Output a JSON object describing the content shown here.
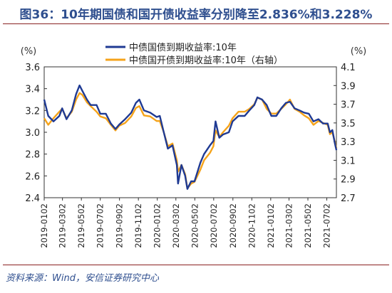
{
  "title": "图36：10年期国债和国开债收益率分别降至2.836%和3.228%",
  "source": "资料来源：Wind，安信证券研究中心",
  "colors": {
    "series1": "#1f3a93",
    "series2": "#f5a31a",
    "axis": "#333333"
  },
  "chart_data": {
    "type": "line",
    "title": "图36：10年期国债和国开债收益率分别降至2.836%和3.228%",
    "left_axis": {
      "unit": "(%)",
      "ylim": [
        2.4,
        3.6
      ],
      "ticks": [
        "2.4",
        "2.6",
        "2.8",
        "3.0",
        "3.2",
        "3.4",
        "3.6"
      ]
    },
    "right_axis": {
      "unit": "(%)",
      "ylim": [
        2.7,
        4.1
      ],
      "ticks": [
        "2.7",
        "2.9",
        "3.1",
        "3.3",
        "3.5",
        "3.7",
        "3.9",
        "4.1"
      ]
    },
    "x_ticks": [
      "2019-01-02",
      "2019-03-02",
      "2019-05-02",
      "2019-07-02",
      "2019-09-02",
      "2019-11-02",
      "2020-01-02",
      "2020-03-02",
      "2020-05-02",
      "2020-07-02",
      "2020-09-02",
      "2020-11-02",
      "2021-01-02",
      "2021-03-02",
      "2021-05-02",
      "2021-07-02"
    ],
    "x_tick_labels": [
      "2019-0102",
      "2019-0302",
      "2019-0502",
      "2019-0702",
      "2019-0902",
      "2019-1102",
      "2020-0102",
      "2020-0302",
      "2020-0502",
      "2020-0702",
      "2020-0902",
      "2020-1102",
      "2021-0102",
      "2021-0302",
      "2021-0502",
      "2021-0702"
    ],
    "legend": {
      "placement": "top-center"
    },
    "series": [
      {
        "name": "中债国债到期收益率:10年",
        "axis": "left",
        "points": [
          [
            "2019-01-02",
            3.3
          ],
          [
            "2019-01-15",
            3.15
          ],
          [
            "2019-02-01",
            3.1
          ],
          [
            "2019-02-20",
            3.15
          ],
          [
            "2019-03-01",
            3.22
          ],
          [
            "2019-03-15",
            3.12
          ],
          [
            "2019-04-01",
            3.2
          ],
          [
            "2019-04-15",
            3.35
          ],
          [
            "2019-04-26",
            3.43
          ],
          [
            "2019-05-05",
            3.38
          ],
          [
            "2019-05-20",
            3.3
          ],
          [
            "2019-06-01",
            3.25
          ],
          [
            "2019-06-20",
            3.25
          ],
          [
            "2019-07-02",
            3.17
          ],
          [
            "2019-07-20",
            3.17
          ],
          [
            "2019-08-05",
            3.08
          ],
          [
            "2019-08-20",
            3.03
          ],
          [
            "2019-09-01",
            3.07
          ],
          [
            "2019-09-20",
            3.12
          ],
          [
            "2019-10-10",
            3.18
          ],
          [
            "2019-10-25",
            3.27
          ],
          [
            "2019-11-05",
            3.3
          ],
          [
            "2019-11-20",
            3.2
          ],
          [
            "2019-12-10",
            3.18
          ],
          [
            "2019-12-31",
            3.14
          ],
          [
            "2020-01-10",
            3.15
          ],
          [
            "2020-01-23",
            3.0
          ],
          [
            "2020-02-05",
            2.85
          ],
          [
            "2020-02-20",
            2.88
          ],
          [
            "2020-03-05",
            2.7
          ],
          [
            "2020-03-09",
            2.53
          ],
          [
            "2020-03-20",
            2.7
          ],
          [
            "2020-04-01",
            2.6
          ],
          [
            "2020-04-08",
            2.48
          ],
          [
            "2020-04-20",
            2.55
          ],
          [
            "2020-05-01",
            2.55
          ],
          [
            "2020-05-20",
            2.72
          ],
          [
            "2020-06-01",
            2.8
          ],
          [
            "2020-06-20",
            2.88
          ],
          [
            "2020-07-01",
            2.92
          ],
          [
            "2020-07-08",
            3.1
          ],
          [
            "2020-07-20",
            2.95
          ],
          [
            "2020-08-01",
            2.98
          ],
          [
            "2020-08-20",
            3.0
          ],
          [
            "2020-09-01",
            3.1
          ],
          [
            "2020-09-20",
            3.15
          ],
          [
            "2020-10-10",
            3.15
          ],
          [
            "2020-10-25",
            3.2
          ],
          [
            "2020-11-10",
            3.25
          ],
          [
            "2020-11-20",
            3.32
          ],
          [
            "2020-12-05",
            3.3
          ],
          [
            "2020-12-20",
            3.25
          ],
          [
            "2021-01-04",
            3.15
          ],
          [
            "2021-01-20",
            3.15
          ],
          [
            "2021-02-05",
            3.22
          ],
          [
            "2021-02-20",
            3.27
          ],
          [
            "2021-03-05",
            3.28
          ],
          [
            "2021-03-20",
            3.22
          ],
          [
            "2021-04-05",
            3.2
          ],
          [
            "2021-04-20",
            3.18
          ],
          [
            "2021-05-05",
            3.17
          ],
          [
            "2021-05-20",
            3.1
          ],
          [
            "2021-06-05",
            3.12
          ],
          [
            "2021-06-20",
            3.08
          ],
          [
            "2021-07-05",
            3.08
          ],
          [
            "2021-07-12",
            3.0
          ],
          [
            "2021-07-20",
            3.02
          ],
          [
            "2021-07-28",
            2.9
          ],
          [
            "2021-08-02",
            2.836
          ]
        ]
      },
      {
        "name": "中债国开债到期收益率:10年（右轴）",
        "axis": "right",
        "points": [
          [
            "2019-01-02",
            3.55
          ],
          [
            "2019-01-15",
            3.48
          ],
          [
            "2019-02-01",
            3.55
          ],
          [
            "2019-02-20",
            3.62
          ],
          [
            "2019-03-01",
            3.65
          ],
          [
            "2019-03-15",
            3.55
          ],
          [
            "2019-04-01",
            3.62
          ],
          [
            "2019-04-15",
            3.75
          ],
          [
            "2019-04-26",
            3.82
          ],
          [
            "2019-05-05",
            3.8
          ],
          [
            "2019-05-20",
            3.72
          ],
          [
            "2019-06-01",
            3.68
          ],
          [
            "2019-06-20",
            3.62
          ],
          [
            "2019-07-02",
            3.57
          ],
          [
            "2019-07-20",
            3.55
          ],
          [
            "2019-08-05",
            3.48
          ],
          [
            "2019-08-20",
            3.42
          ],
          [
            "2019-09-01",
            3.47
          ],
          [
            "2019-09-20",
            3.5
          ],
          [
            "2019-10-10",
            3.57
          ],
          [
            "2019-10-25",
            3.66
          ],
          [
            "2019-11-05",
            3.68
          ],
          [
            "2019-11-20",
            3.58
          ],
          [
            "2019-12-10",
            3.57
          ],
          [
            "2019-12-31",
            3.52
          ],
          [
            "2020-01-10",
            3.52
          ],
          [
            "2020-01-23",
            3.4
          ],
          [
            "2020-02-05",
            3.25
          ],
          [
            "2020-02-20",
            3.28
          ],
          [
            "2020-03-05",
            3.1
          ],
          [
            "2020-03-09",
            2.98
          ],
          [
            "2020-03-20",
            3.05
          ],
          [
            "2020-04-01",
            2.95
          ],
          [
            "2020-04-08",
            2.8
          ],
          [
            "2020-04-20",
            2.85
          ],
          [
            "2020-05-01",
            2.87
          ],
          [
            "2020-05-20",
            3.0
          ],
          [
            "2020-06-01",
            3.1
          ],
          [
            "2020-06-20",
            3.18
          ],
          [
            "2020-07-01",
            3.25
          ],
          [
            "2020-07-08",
            3.42
          ],
          [
            "2020-07-20",
            3.35
          ],
          [
            "2020-08-01",
            3.4
          ],
          [
            "2020-08-20",
            3.47
          ],
          [
            "2020-09-01",
            3.55
          ],
          [
            "2020-09-20",
            3.62
          ],
          [
            "2020-10-10",
            3.62
          ],
          [
            "2020-10-25",
            3.65
          ],
          [
            "2020-11-10",
            3.7
          ],
          [
            "2020-11-20",
            3.77
          ],
          [
            "2020-12-05",
            3.75
          ],
          [
            "2020-12-20",
            3.65
          ],
          [
            "2021-01-04",
            3.6
          ],
          [
            "2021-01-20",
            3.6
          ],
          [
            "2021-02-05",
            3.65
          ],
          [
            "2021-02-20",
            3.7
          ],
          [
            "2021-03-05",
            3.75
          ],
          [
            "2021-03-20",
            3.65
          ],
          [
            "2021-04-05",
            3.62
          ],
          [
            "2021-04-20",
            3.58
          ],
          [
            "2021-05-05",
            3.55
          ],
          [
            "2021-05-20",
            3.48
          ],
          [
            "2021-06-05",
            3.52
          ],
          [
            "2021-06-20",
            3.5
          ],
          [
            "2021-07-05",
            3.48
          ],
          [
            "2021-07-12",
            3.38
          ],
          [
            "2021-07-20",
            3.4
          ],
          [
            "2021-07-28",
            3.3
          ],
          [
            "2021-08-02",
            3.228
          ]
        ]
      }
    ]
  }
}
